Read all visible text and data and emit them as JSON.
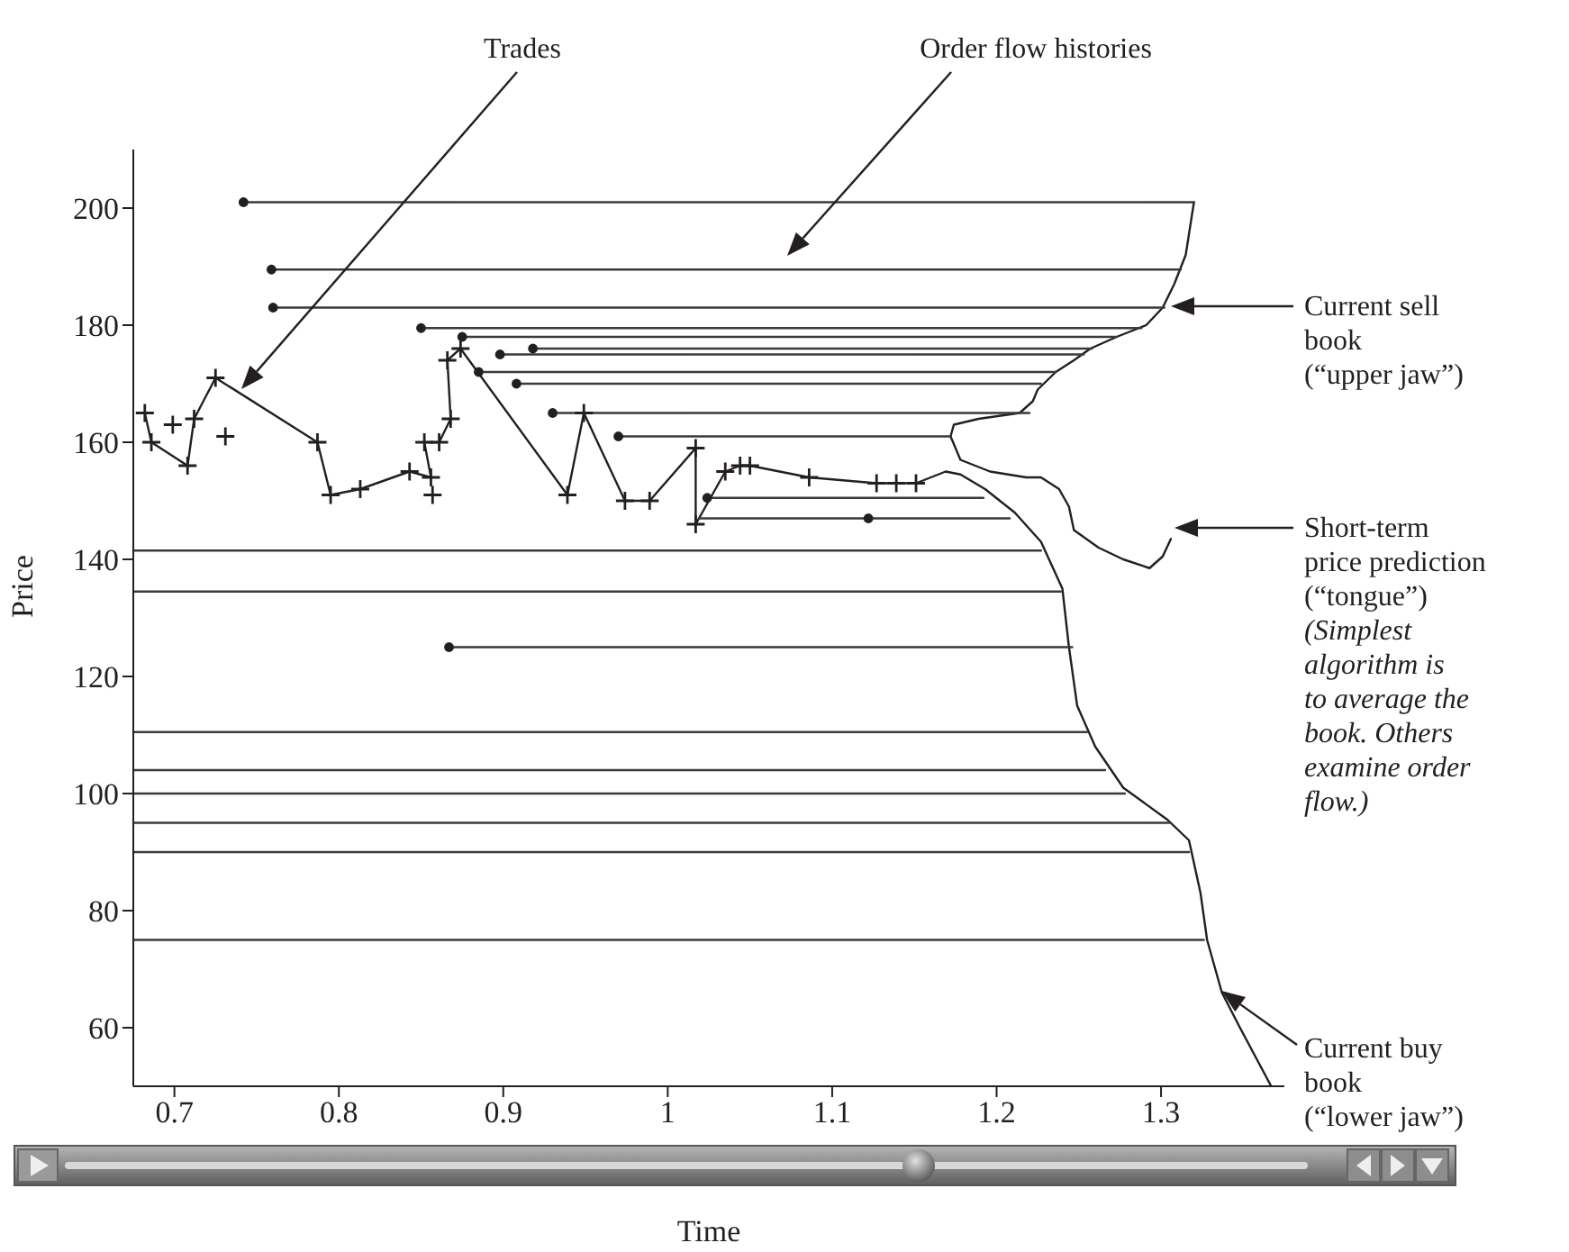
{
  "chart_data": {
    "type": "line",
    "xlabel": "Time",
    "ylabel": "Price",
    "xlim": [
      0.675,
      1.375
    ],
    "ylim": [
      50,
      210
    ],
    "xticks": [
      0.7,
      0.8,
      0.9,
      1,
      1.1,
      1.2,
      1.3
    ],
    "yticks": [
      60,
      80,
      100,
      120,
      140,
      160,
      180,
      200
    ],
    "annotations": [
      "Trades",
      "Order flow histories",
      "Current sell\nbook\n(“upper jaw”)",
      "Short-term\nprice prediction\n(“tongue”)",
      "(Simplest\nalgorithm is\nto average the\nbook. Others\nexamine order\nflow.)",
      "Current buy\nbook\n(“lower jaw”)"
    ],
    "series": [
      {
        "marker": "cross",
        "color": "#231f20",
        "x": [
          0.682,
          0.686,
          0.708,
          0.712,
          0.725,
          0.787,
          0.795,
          0.813,
          0.843,
          0.856,
          0.852,
          0.861,
          0.868,
          0.866,
          0.874,
          0.939,
          0.949,
          0.974,
          0.989,
          1.017,
          1.017,
          1.035,
          1.044,
          1.05,
          1.086,
          1.127,
          1.139,
          1.151
        ],
        "values": [
          165,
          160,
          156,
          164,
          171,
          160,
          151,
          152,
          155,
          154,
          160,
          160,
          164,
          174,
          176,
          151,
          165,
          150,
          150,
          159,
          146,
          155,
          156,
          156,
          154,
          153,
          153,
          153
        ]
      },
      {
        "type": "scatter",
        "marker": "cross",
        "color": "#231f20",
        "x": [
          0.699,
          0.731,
          0.857
        ],
        "values": [
          163,
          161,
          151
        ]
      },
      {
        "type": "line",
        "marker": "none",
        "color": "#231f20",
        "x": [
          1.32,
          1.315,
          1.308,
          1.301,
          1.291,
          1.273,
          1.257,
          1.247,
          1.236,
          1.225,
          1.222,
          1.214,
          1.189,
          1.174,
          1.172
        ],
        "values": [
          201,
          192,
          187,
          183,
          180,
          178,
          176,
          174,
          172,
          169,
          167,
          165,
          164,
          163,
          161
        ]
      },
      {
        "type": "line",
        "marker": "none",
        "color": "#231f20",
        "x": [
          1.172,
          1.178,
          1.196,
          1.218,
          1.227,
          1.238,
          1.244,
          1.247,
          1.262,
          1.277,
          1.293,
          1.301,
          1.306
        ],
        "values": [
          161,
          157,
          155,
          154,
          154,
          152,
          149,
          145,
          142,
          140,
          138.5,
          140.5,
          143.5
        ]
      },
      {
        "type": "line",
        "marker": "none",
        "color": "#231f20",
        "x": [
          1.151,
          1.169,
          1.178,
          1.193,
          1.211,
          1.227,
          1.24,
          1.244,
          1.249,
          1.26,
          1.277,
          1.304,
          1.317,
          1.324,
          1.328,
          1.337,
          1.348,
          1.367
        ],
        "values": [
          153,
          155,
          154.5,
          152,
          148,
          143,
          135,
          125,
          115,
          108,
          101,
          95.5,
          92,
          83,
          75,
          66,
          60,
          50
        ]
      },
      {
        "type": "line",
        "marker": "none",
        "color": "#3a3a3a",
        "x": [
          0.742,
          1.32
        ],
        "values": [
          201,
          201
        ]
      },
      {
        "type": "line",
        "marker": "none",
        "color": "#3a3a3a",
        "x": [
          0.759,
          1.312
        ],
        "values": [
          189.5,
          189.5
        ]
      },
      {
        "type": "line",
        "marker": "none",
        "color": "#3a3a3a",
        "x": [
          0.76,
          1.302
        ],
        "values": [
          183,
          183
        ]
      },
      {
        "type": "line",
        "marker": "none",
        "color": "#3a3a3a",
        "x": [
          0.85,
          1.288
        ],
        "values": [
          179.5,
          179.5
        ]
      },
      {
        "type": "line",
        "marker": "none",
        "color": "#3a3a3a",
        "x": [
          0.875,
          1.273
        ],
        "values": [
          178,
          178
        ]
      },
      {
        "type": "line",
        "marker": "none",
        "color": "#3a3a3a",
        "x": [
          0.918,
          1.258
        ],
        "values": [
          176,
          176
        ]
      },
      {
        "type": "line",
        "marker": "none",
        "color": "#3a3a3a",
        "x": [
          0.898,
          1.253
        ],
        "values": [
          175,
          175
        ]
      },
      {
        "type": "line",
        "marker": "none",
        "color": "#3a3a3a",
        "x": [
          0.885,
          1.236
        ],
        "values": [
          172,
          172
        ]
      },
      {
        "type": "line",
        "marker": "none",
        "color": "#3a3a3a",
        "x": [
          0.908,
          1.227
        ],
        "values": [
          170,
          170
        ]
      },
      {
        "type": "line",
        "marker": "none",
        "color": "#3a3a3a",
        "x": [
          0.93,
          1.22
        ],
        "values": [
          165,
          165
        ]
      },
      {
        "type": "line",
        "marker": "none",
        "color": "#3a3a3a",
        "x": [
          0.97,
          1.172
        ],
        "values": [
          161,
          161
        ]
      },
      {
        "type": "line",
        "marker": "none",
        "color": "#3a3a3a",
        "x": [
          1.024,
          1.192
        ],
        "values": [
          150.5,
          150.5
        ]
      },
      {
        "type": "line",
        "marker": "none",
        "color": "#3a3a3a",
        "x": [
          1.019,
          1.208
        ],
        "values": [
          147,
          147
        ]
      },
      {
        "type": "line",
        "marker": "none",
        "color": "#3a3a3a",
        "x": [
          0.675,
          1.227
        ],
        "values": [
          141.5,
          141.5
        ]
      },
      {
        "type": "line",
        "marker": "none",
        "color": "#3a3a3a",
        "x": [
          0.675,
          1.239
        ],
        "values": [
          134.5,
          134.5
        ]
      },
      {
        "type": "line",
        "marker": "none",
        "color": "#3a3a3a",
        "x": [
          0.867,
          1.246
        ],
        "values": [
          125,
          125
        ]
      },
      {
        "type": "line",
        "marker": "none",
        "color": "#3a3a3a",
        "x": [
          0.675,
          1.255
        ],
        "values": [
          110.5,
          110.5
        ]
      },
      {
        "type": "line",
        "marker": "none",
        "color": "#3a3a3a",
        "x": [
          0.675,
          1.266
        ],
        "values": [
          104,
          104
        ]
      },
      {
        "type": "line",
        "marker": "none",
        "color": "#3a3a3a",
        "x": [
          0.675,
          1.278
        ],
        "values": [
          100,
          100
        ]
      },
      {
        "type": "line",
        "marker": "none",
        "color": "#3a3a3a",
        "x": [
          0.675,
          1.305
        ],
        "values": [
          95,
          95
        ]
      },
      {
        "type": "line",
        "marker": "none",
        "color": "#3a3a3a",
        "x": [
          0.675,
          1.317
        ],
        "values": [
          90,
          90
        ]
      },
      {
        "type": "line",
        "marker": "none",
        "color": "#3a3a3a",
        "x": [
          0.675,
          1.326
        ],
        "values": [
          75,
          75
        ]
      },
      {
        "type": "scatter",
        "marker": "circle",
        "color": "#231f20",
        "x": [
          0.742,
          0.759,
          0.76,
          0.85,
          0.875,
          0.918,
          0.898,
          0.885,
          0.908,
          0.93,
          0.97,
          0.867,
          1.024,
          1.122
        ],
        "values": [
          201,
          189.5,
          183,
          179.5,
          178,
          176,
          175,
          172,
          170,
          165,
          161,
          125,
          150.5,
          147
        ]
      }
    ]
  }
}
